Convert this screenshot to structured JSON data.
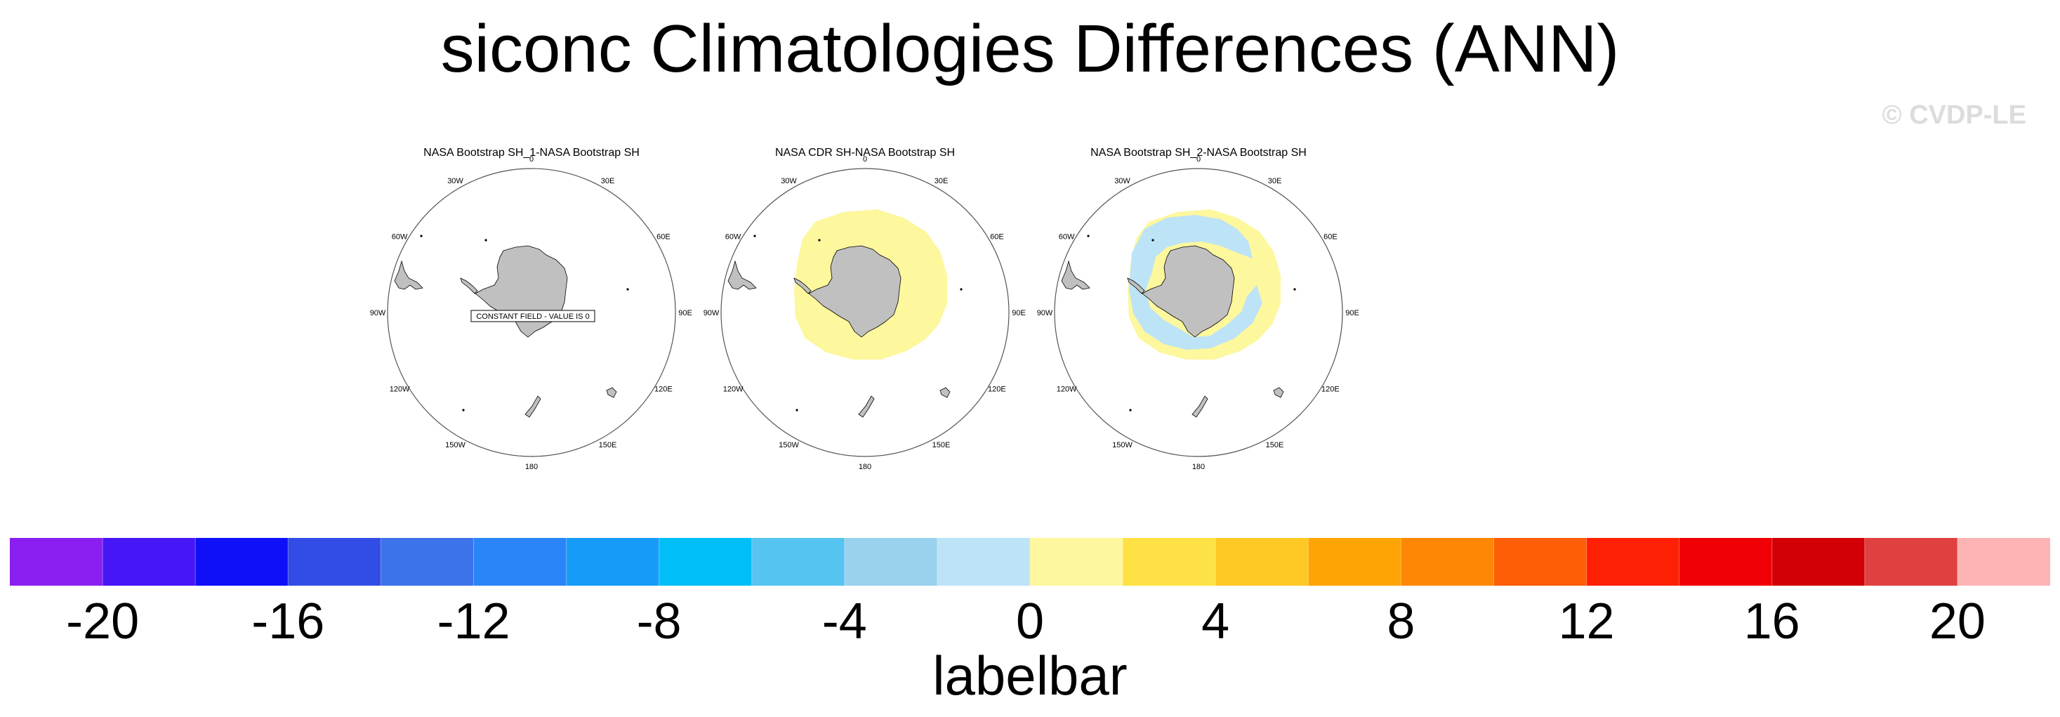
{
  "title": "siconc Climatologies Differences (ANN)",
  "watermark": "© CVDP-LE",
  "projection": "south-polar-stereographic",
  "panels": [
    {
      "title": "NASA Bootstrap SH_1-NASA Bootstrap SH",
      "pattern": "constant",
      "note": "CONSTANT FIELD - VALUE IS 0"
    },
    {
      "title": "NASA CDR SH-NASA Bootstrap SH",
      "pattern": "positive-ring"
    },
    {
      "title": "NASA Bootstrap SH_2-NASA Bootstrap SH",
      "pattern": "mixed-ring"
    }
  ],
  "meridian_labels": [
    "0",
    "30E",
    "60E",
    "90E",
    "120E",
    "150E",
    "180",
    "150W",
    "120W",
    "90W",
    "60W",
    "30W"
  ],
  "land_color": "#c0c0c0",
  "colorbar": {
    "title": "labelbar",
    "colors": [
      "#8b1ef0",
      "#4616f6",
      "#0f10f8",
      "#324ce6",
      "#3c73ea",
      "#2a86f8",
      "#169cf8",
      "#00bff8",
      "#56c4f0",
      "#9ad1ee",
      "#bde3f6",
      "#fdf79e",
      "#fee245",
      "#fec825",
      "#fea505",
      "#fe8705",
      "#fe5e05",
      "#fe2005",
      "#f00006",
      "#d20006",
      "#e04040",
      "#feb4b4"
    ],
    "tick_values": [
      -20,
      -16,
      -12,
      -8,
      -4,
      0,
      4,
      8,
      12,
      16,
      20
    ],
    "tick_labels": [
      "-20",
      "-16",
      "-12",
      "-8",
      "-4",
      "0",
      "4",
      "8",
      "12",
      "16",
      "20"
    ],
    "range": [
      -22,
      22
    ]
  }
}
